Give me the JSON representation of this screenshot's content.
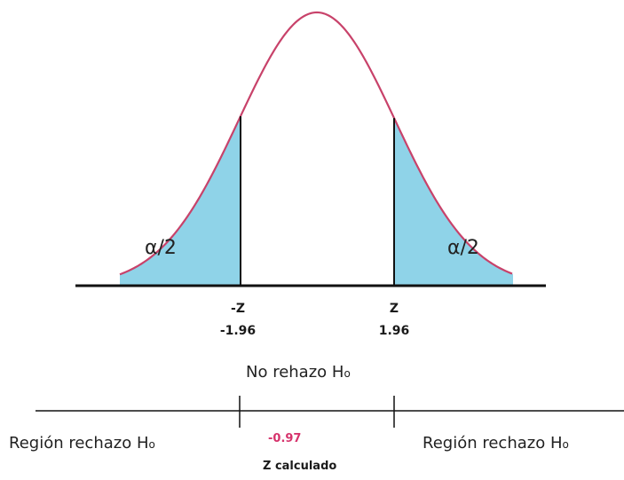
{
  "diagram": {
    "left_tail_label": "α/2",
    "right_tail_label": "α/2",
    "neg_critical_symbol": "-Z",
    "neg_critical_value": "-1.96",
    "pos_critical_symbol": "Z",
    "pos_critical_value": "1.96",
    "acceptance_label": "No rehazo H",
    "acceptance_label_sub": "o",
    "left_reject_label": "Región rechazo H",
    "left_reject_sub": "o",
    "right_reject_label": "Región rechazo H",
    "right_reject_sub": "o",
    "computed_value": "-0.97",
    "computed_label": "Z calculado"
  },
  "colors": {
    "curve": "#c8426a",
    "tail_fill": "#8fd3e8",
    "axis": "#111111",
    "computed_value": "#d6336c"
  }
}
